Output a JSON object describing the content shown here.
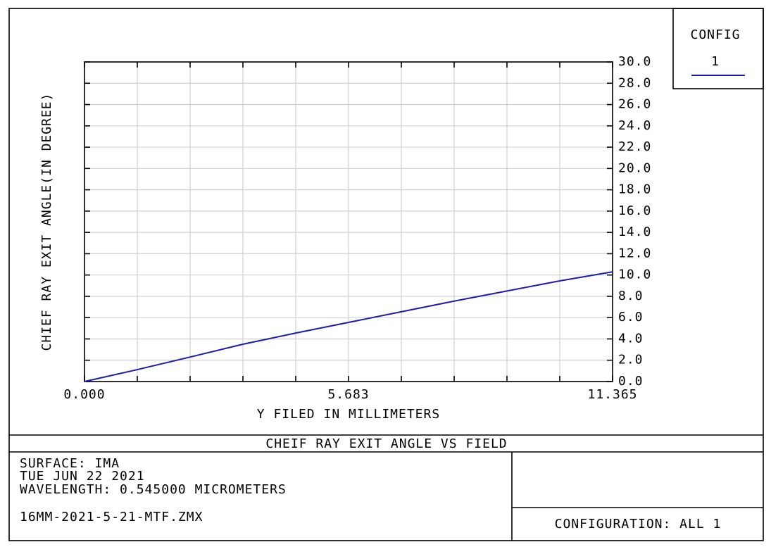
{
  "chart_data": {
    "type": "line",
    "title": "CHEIF RAY EXIT ANGLE VS FIELD",
    "xlabel": "Y FILED IN MILLIMETERS",
    "ylabel": "CHIEF RAY EXIT ANGLE(IN DEGREE)",
    "legend_title": "CONFIG",
    "x": [
      0,
      1.1365,
      2.273,
      3.4095,
      4.546,
      5.683,
      6.819,
      7.9555,
      9.092,
      10.2285,
      11.365
    ],
    "series": [
      {
        "name": "1",
        "color": "#1c1cb0",
        "values": [
          0,
          1.12,
          2.3,
          3.5,
          4.55,
          5.55,
          6.55,
          7.55,
          8.5,
          9.45,
          10.3
        ]
      }
    ],
    "xlim": [
      0,
      11.365
    ],
    "xticks": [
      {
        "value": 0,
        "label": "0.000"
      },
      5.683,
      11.365
    ],
    "x_minor_ticks": [
      1.1365,
      2.273,
      3.4095,
      4.546,
      6.819,
      7.9555,
      9.092,
      10.2285
    ],
    "ylim": [
      0,
      30
    ],
    "yticks": [
      {
        "value": 0,
        "label": "0.0"
      },
      {
        "value": 2,
        "label": "2.0"
      },
      {
        "value": 4,
        "label": "4.0"
      },
      {
        "value": 6,
        "label": "6.0"
      },
      {
        "value": 8,
        "label": "8.0"
      },
      {
        "value": 10,
        "label": "10.0"
      },
      {
        "value": 12,
        "label": "12.0"
      },
      {
        "value": 14,
        "label": "14.0"
      },
      {
        "value": 16,
        "label": "16.0"
      },
      {
        "value": 18,
        "label": "18.0"
      },
      {
        "value": 20,
        "label": "20.0"
      },
      {
        "value": 22,
        "label": "22.0"
      },
      {
        "value": 24,
        "label": "24.0"
      },
      {
        "value": 26,
        "label": "26.0"
      },
      {
        "value": 28,
        "label": "28.0"
      },
      {
        "value": 30,
        "label": "30.0"
      }
    ],
    "grid": true
  },
  "info": {
    "surface": "SURFACE: IMA",
    "date": "TUE JUN 22 2021",
    "wavelength": "WAVELENGTH: 0.545000 MICROMETERS",
    "file": "16MM-2021-5-21-MTF.ZMX",
    "configuration": "CONFIGURATION: ALL 1"
  }
}
